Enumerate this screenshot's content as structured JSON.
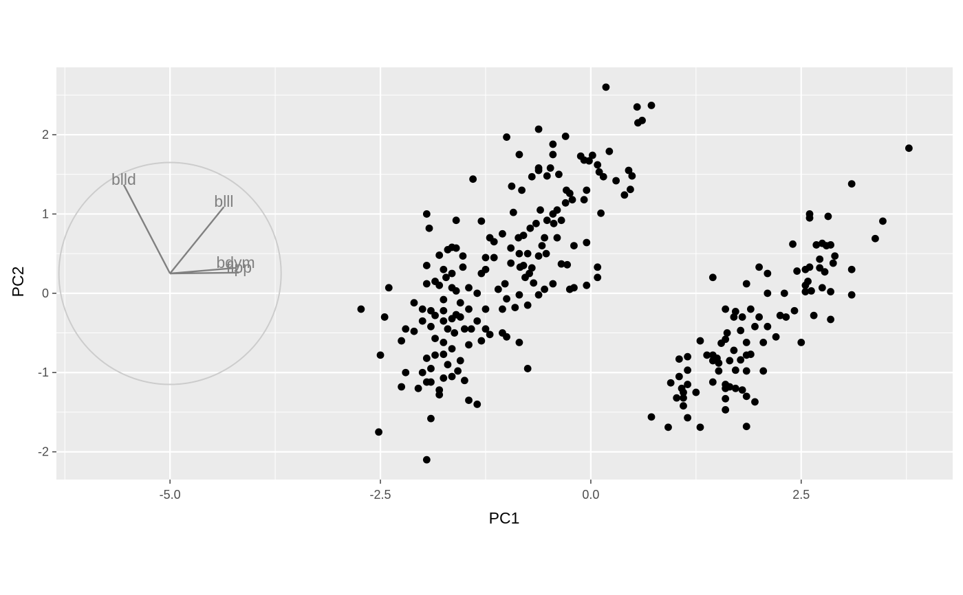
{
  "chart_data": {
    "type": "scatter",
    "title": "",
    "xlabel": "PC1",
    "ylabel": "PC2",
    "xlim": [
      -6.35,
      4.3
    ],
    "ylim": [
      -2.35,
      2.85
    ],
    "x_ticks": [
      -5.0,
      -2.5,
      0.0,
      2.5
    ],
    "x_tick_labels": [
      "-5.0",
      "-2.5",
      "0.0",
      "2.5"
    ],
    "y_ticks": [
      -2,
      -1,
      0,
      1,
      2
    ],
    "y_tick_labels": [
      "-2",
      "-1",
      "0",
      "1",
      "2"
    ],
    "grid": true,
    "legend": "none",
    "colors": {
      "panel": "#ebebeb",
      "grid": "#ffffff",
      "points": "#000000",
      "loadings": "#808080",
      "circle": "#cccccc",
      "ticks": "#4d4d4d"
    },
    "loadings": {
      "circle_center": [
        -5.0,
        0.25
      ],
      "circle_radius": 1.4,
      "vectors": [
        {
          "label": "blld",
          "x": -5.55,
          "y": 1.37
        },
        {
          "label": "blll",
          "x": -4.36,
          "y": 1.09
        },
        {
          "label": "bdym",
          "x": -4.22,
          "y": 0.32
        },
        {
          "label": "flpp",
          "x": -4.18,
          "y": 0.26
        }
      ]
    },
    "points": [
      [
        0.18,
        2.6
      ],
      [
        0.55,
        2.35
      ],
      [
        0.72,
        2.37
      ],
      [
        0.56,
        2.15
      ],
      [
        0.61,
        2.18
      ],
      [
        -0.62,
        2.07
      ],
      [
        -1.0,
        1.97
      ],
      [
        -0.3,
        1.98
      ],
      [
        -0.45,
        1.88
      ],
      [
        -0.85,
        1.75
      ],
      [
        -0.45,
        1.75
      ],
      [
        -0.12,
        1.73
      ],
      [
        0.02,
        1.74
      ],
      [
        0.22,
        1.79
      ],
      [
        -0.08,
        1.68
      ],
      [
        -0.02,
        1.67
      ],
      [
        0.08,
        1.62
      ],
      [
        -0.62,
        1.58
      ],
      [
        -0.48,
        1.58
      ],
      [
        -0.62,
        1.55
      ],
      [
        -0.38,
        1.5
      ],
      [
        -0.7,
        1.47
      ],
      [
        -0.52,
        1.48
      ],
      [
        0.1,
        1.53
      ],
      [
        0.15,
        1.47
      ],
      [
        0.45,
        1.55
      ],
      [
        0.3,
        1.42
      ],
      [
        0.49,
        1.48
      ],
      [
        -1.4,
        1.44
      ],
      [
        -0.94,
        1.35
      ],
      [
        -0.29,
        1.3
      ],
      [
        -0.05,
        1.3
      ],
      [
        -0.25,
        1.26
      ],
      [
        0.4,
        1.24
      ],
      [
        0.47,
        1.31
      ],
      [
        -0.82,
        1.3
      ],
      [
        -0.22,
        1.18
      ],
      [
        -0.08,
        1.18
      ],
      [
        -0.3,
        1.14
      ],
      [
        -0.6,
        1.05
      ],
      [
        -0.4,
        1.05
      ],
      [
        -1.6,
        0.92
      ],
      [
        -1.3,
        0.91
      ],
      [
        -0.52,
        0.92
      ],
      [
        -0.44,
        0.88
      ],
      [
        -0.35,
        0.92
      ],
      [
        -0.65,
        0.88
      ],
      [
        -0.92,
        1.02
      ],
      [
        -1.95,
        1.0
      ],
      [
        -0.45,
        1.0
      ],
      [
        0.12,
        1.01
      ],
      [
        -1.92,
        0.82
      ],
      [
        -0.72,
        0.82
      ],
      [
        -1.2,
        0.7
      ],
      [
        -0.95,
        0.57
      ],
      [
        -0.55,
        0.7
      ],
      [
        -0.4,
        0.7
      ],
      [
        -0.2,
        0.6
      ],
      [
        -0.05,
        0.64
      ],
      [
        -1.15,
        0.65
      ],
      [
        -1.05,
        0.75
      ],
      [
        -0.86,
        0.7
      ],
      [
        -0.8,
        0.73
      ],
      [
        -0.58,
        0.6
      ],
      [
        -1.65,
        0.58
      ],
      [
        -1.6,
        0.57
      ],
      [
        -1.7,
        0.55
      ],
      [
        -1.52,
        0.47
      ],
      [
        -1.8,
        0.48
      ],
      [
        -0.85,
        0.5
      ],
      [
        -0.75,
        0.5
      ],
      [
        -0.53,
        0.5
      ],
      [
        -0.62,
        0.47
      ],
      [
        -1.15,
        0.45
      ],
      [
        -1.25,
        0.45
      ],
      [
        -0.95,
        0.38
      ],
      [
        -0.8,
        0.35
      ],
      [
        -0.84,
        0.33
      ],
      [
        -0.35,
        0.37
      ],
      [
        -0.28,
        0.36
      ],
      [
        -0.7,
        0.32
      ],
      [
        0.08,
        0.33
      ],
      [
        0.08,
        0.2
      ],
      [
        -1.95,
        0.35
      ],
      [
        -1.75,
        0.3
      ],
      [
        -1.65,
        0.25
      ],
      [
        -1.52,
        0.33
      ],
      [
        -1.25,
        0.3
      ],
      [
        -1.3,
        0.25
      ],
      [
        -0.73,
        0.25
      ],
      [
        -0.78,
        0.2
      ],
      [
        -0.68,
        0.13
      ],
      [
        -0.55,
        0.05
      ],
      [
        -0.45,
        0.12
      ],
      [
        -0.2,
        0.07
      ],
      [
        -0.25,
        0.05
      ],
      [
        -0.05,
        0.1
      ],
      [
        -1.95,
        0.12
      ],
      [
        -1.8,
        0.1
      ],
      [
        -1.65,
        0.07
      ],
      [
        -1.6,
        0.03
      ],
      [
        -1.45,
        0.07
      ],
      [
        -1.35,
        0.0
      ],
      [
        -1.1,
        0.05
      ],
      [
        -1.85,
        0.15
      ],
      [
        -1.72,
        0.2
      ],
      [
        -1.02,
        0.12
      ],
      [
        -0.85,
        -0.02
      ],
      [
        -0.62,
        -0.02
      ],
      [
        -2.4,
        0.07
      ],
      [
        -2.0,
        -0.2
      ],
      [
        -1.9,
        -0.22
      ],
      [
        -2.1,
        -0.12
      ],
      [
        -1.75,
        -0.08
      ],
      [
        -1.55,
        -0.12
      ],
      [
        -1.45,
        -0.2
      ],
      [
        -1.6,
        -0.27
      ],
      [
        -1.75,
        -0.22
      ],
      [
        -2.73,
        -0.2
      ],
      [
        -1.0,
        -0.07
      ],
      [
        -0.75,
        -0.15
      ],
      [
        -0.9,
        -0.18
      ],
      [
        -1.05,
        -0.2
      ],
      [
        -1.25,
        -0.2
      ],
      [
        -2.45,
        -0.3
      ],
      [
        -2.0,
        -0.35
      ],
      [
        -1.85,
        -0.28
      ],
      [
        -1.75,
        -0.35
      ],
      [
        -1.65,
        -0.32
      ],
      [
        -1.55,
        -0.3
      ],
      [
        -1.5,
        -0.45
      ],
      [
        -1.42,
        -0.45
      ],
      [
        -1.35,
        -0.35
      ],
      [
        -2.2,
        -0.45
      ],
      [
        -2.1,
        -0.48
      ],
      [
        -1.9,
        -0.42
      ],
      [
        -1.7,
        -0.45
      ],
      [
        -1.62,
        -0.5
      ],
      [
        -1.3,
        -0.6
      ],
      [
        -1.25,
        -0.45
      ],
      [
        -1.2,
        -0.52
      ],
      [
        -1.05,
        -0.5
      ],
      [
        -1.0,
        -0.55
      ],
      [
        -0.85,
        -0.62
      ],
      [
        -2.25,
        -0.6
      ],
      [
        -1.85,
        -0.57
      ],
      [
        -1.75,
        -0.62
      ],
      [
        -1.65,
        -0.7
      ],
      [
        -1.45,
        -0.65
      ],
      [
        -2.5,
        -0.78
      ],
      [
        -1.95,
        -0.82
      ],
      [
        -1.85,
        -0.78
      ],
      [
        -1.75,
        -0.77
      ],
      [
        -1.7,
        -0.9
      ],
      [
        -1.55,
        -0.85
      ],
      [
        -1.9,
        -0.95
      ],
      [
        -1.58,
        -0.98
      ],
      [
        -0.75,
        -0.95
      ],
      [
        -2.2,
        -1.0
      ],
      [
        -2.0,
        -1.0
      ],
      [
        -1.65,
        -1.05
      ],
      [
        -1.75,
        -1.07
      ],
      [
        -1.5,
        -1.1
      ],
      [
        -1.95,
        -1.12
      ],
      [
        -1.9,
        -1.12
      ],
      [
        -2.25,
        -1.18
      ],
      [
        -2.05,
        -1.2
      ],
      [
        -1.8,
        -1.22
      ],
      [
        -1.8,
        -1.28
      ],
      [
        -1.45,
        -1.35
      ],
      [
        -1.35,
        -1.4
      ],
      [
        -1.9,
        -1.58
      ],
      [
        -2.52,
        -1.75
      ],
      [
        -1.95,
        -2.1
      ],
      [
        3.78,
        1.83
      ],
      [
        3.1,
        1.38
      ],
      [
        3.47,
        0.91
      ],
      [
        2.6,
        1.0
      ],
      [
        2.82,
        0.97
      ],
      [
        2.6,
        0.95
      ],
      [
        3.38,
        0.69
      ],
      [
        2.4,
        0.62
      ],
      [
        2.75,
        0.63
      ],
      [
        2.8,
        0.6
      ],
      [
        2.85,
        0.61
      ],
      [
        2.68,
        0.61
      ],
      [
        2.9,
        0.47
      ],
      [
        2.72,
        0.43
      ],
      [
        2.6,
        0.33
      ],
      [
        2.55,
        0.3
      ],
      [
        2.45,
        0.28
      ],
      [
        2.72,
        0.32
      ],
      [
        2.78,
        0.27
      ],
      [
        2.88,
        0.38
      ],
      [
        3.1,
        0.3
      ],
      [
        2.0,
        0.33
      ],
      [
        2.1,
        0.25
      ],
      [
        1.45,
        0.2
      ],
      [
        1.85,
        0.12
      ],
      [
        2.58,
        0.15
      ],
      [
        2.55,
        0.1
      ],
      [
        2.75,
        0.07
      ],
      [
        2.62,
        0.03
      ],
      [
        2.55,
        0.02
      ],
      [
        2.85,
        0.02
      ],
      [
        3.1,
        -0.02
      ],
      [
        2.3,
        0.0
      ],
      [
        2.1,
        0.0
      ],
      [
        2.42,
        -0.22
      ],
      [
        2.65,
        -0.28
      ],
      [
        2.85,
        -0.33
      ],
      [
        1.6,
        -0.2
      ],
      [
        1.72,
        -0.23
      ],
      [
        1.9,
        -0.2
      ],
      [
        2.0,
        -0.3
      ],
      [
        2.25,
        -0.28
      ],
      [
        2.32,
        -0.3
      ],
      [
        1.8,
        -0.3
      ],
      [
        1.7,
        -0.3
      ],
      [
        1.95,
        -0.42
      ],
      [
        1.78,
        -0.47
      ],
      [
        1.62,
        -0.5
      ],
      [
        2.1,
        -0.42
      ],
      [
        2.2,
        -0.55
      ],
      [
        2.5,
        -0.62
      ],
      [
        2.05,
        -0.62
      ],
      [
        1.85,
        -0.62
      ],
      [
        1.6,
        -0.58
      ],
      [
        1.55,
        -0.63
      ],
      [
        1.3,
        -0.6
      ],
      [
        1.38,
        -0.78
      ],
      [
        1.45,
        -0.78
      ],
      [
        1.5,
        -0.82
      ],
      [
        1.7,
        -0.72
      ],
      [
        1.85,
        -0.78
      ],
      [
        1.9,
        -0.77
      ],
      [
        1.78,
        -0.84
      ],
      [
        1.65,
        -0.85
      ],
      [
        1.45,
        -0.85
      ],
      [
        1.52,
        -0.88
      ],
      [
        1.05,
        -0.83
      ],
      [
        1.15,
        -0.8
      ],
      [
        2.05,
        -0.98
      ],
      [
        1.85,
        -0.98
      ],
      [
        1.72,
        -0.97
      ],
      [
        1.52,
        -0.98
      ],
      [
        1.15,
        -0.97
      ],
      [
        1.05,
        -1.05
      ],
      [
        1.45,
        -1.12
      ],
      [
        1.6,
        -1.15
      ],
      [
        1.65,
        -1.18
      ],
      [
        1.72,
        -1.2
      ],
      [
        1.8,
        -1.22
      ],
      [
        0.95,
        -1.13
      ],
      [
        1.08,
        -1.2
      ],
      [
        1.15,
        -1.15
      ],
      [
        1.1,
        -1.25
      ],
      [
        1.25,
        -1.25
      ],
      [
        1.6,
        -1.2
      ],
      [
        1.85,
        -1.3
      ],
      [
        1.02,
        -1.32
      ],
      [
        1.1,
        -1.32
      ],
      [
        1.6,
        -1.33
      ],
      [
        1.1,
        -1.42
      ],
      [
        1.95,
        -1.37
      ],
      [
        1.6,
        -1.47
      ],
      [
        0.72,
        -1.56
      ],
      [
        1.15,
        -1.57
      ],
      [
        0.92,
        -1.69
      ],
      [
        1.3,
        -1.69
      ],
      [
        1.85,
        -1.68
      ]
    ]
  }
}
